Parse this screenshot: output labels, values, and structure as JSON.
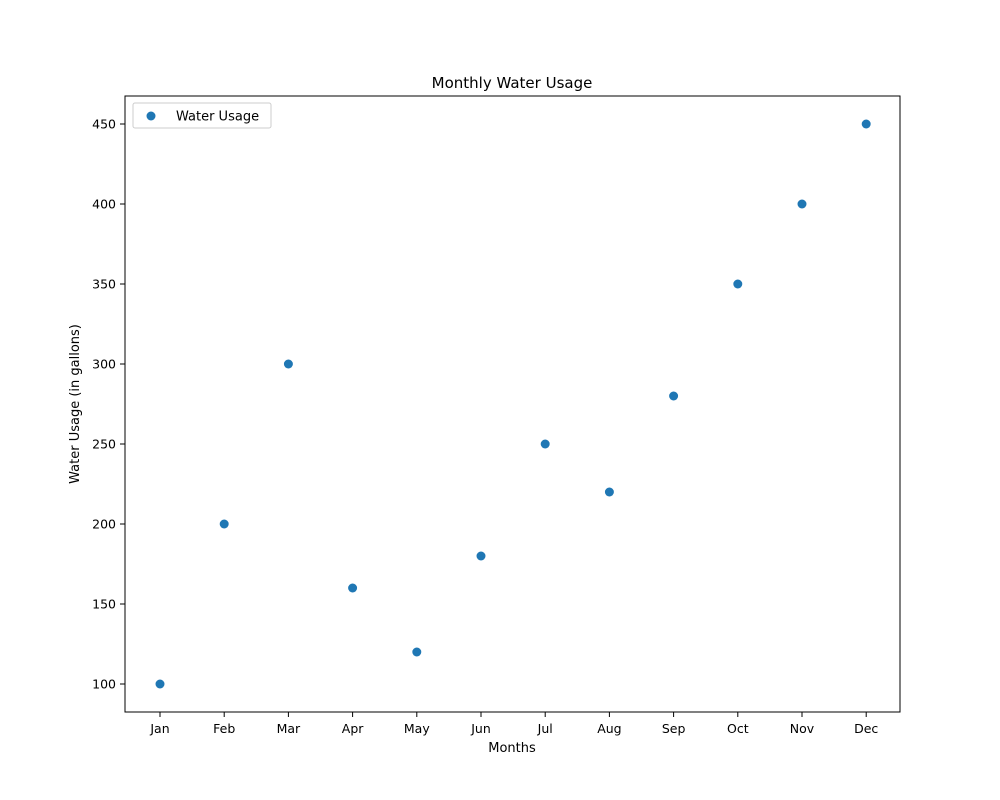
{
  "chart_data": {
    "type": "scatter",
    "title": "Monthly Water Usage",
    "xlabel": "Months",
    "ylabel": "Water Usage (in gallons)",
    "categories": [
      "Jan",
      "Feb",
      "Mar",
      "Apr",
      "May",
      "Jun",
      "Jul",
      "Aug",
      "Sep",
      "Oct",
      "Nov",
      "Dec"
    ],
    "series": [
      {
        "name": "Water Usage",
        "color": "#1f77b4",
        "values": [
          100,
          200,
          300,
          160,
          120,
          180,
          250,
          220,
          280,
          350,
          400,
          450
        ]
      }
    ],
    "yticks": [
      100,
      150,
      200,
      250,
      300,
      350,
      400,
      450
    ],
    "ylim": [
      82.5,
      467.5
    ],
    "grid": false,
    "legend": "top-left"
  }
}
